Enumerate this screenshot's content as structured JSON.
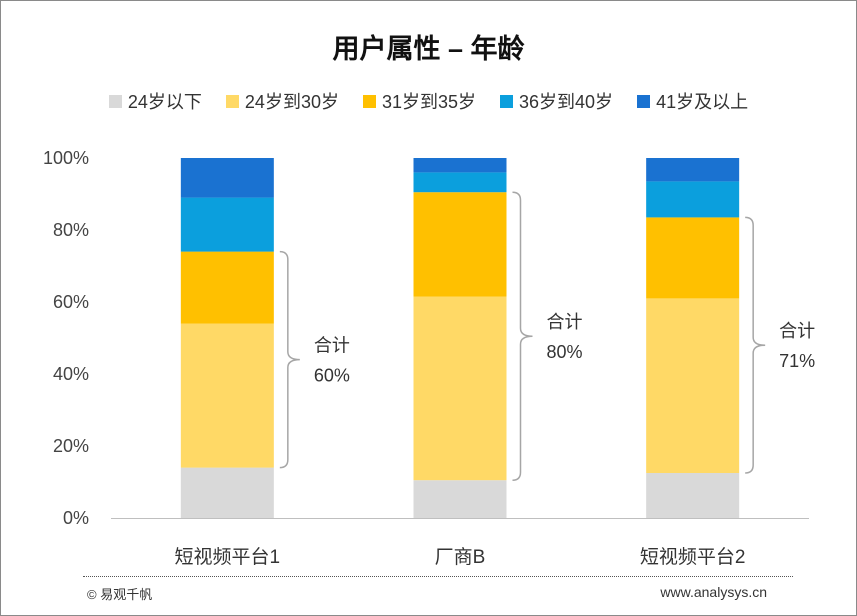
{
  "chart_data": {
    "type": "bar",
    "stacked": true,
    "title": "用户属性 – 年龄",
    "categories": [
      "短视频平台1",
      "厂商B",
      "短视频平台2"
    ],
    "series": [
      {
        "name": "24岁以下",
        "color": "#d9d9d9",
        "values": [
          14,
          10.5,
          12.5
        ]
      },
      {
        "name": "24岁到30岁",
        "color": "#ffd966",
        "values": [
          40,
          51,
          48.5
        ]
      },
      {
        "name": "31岁到35岁",
        "color": "#ffc000",
        "values": [
          20,
          29,
          22.5
        ]
      },
      {
        "name": "36岁到40岁",
        "color": "#0b9fdd",
        "values": [
          15,
          5.5,
          10
        ]
      },
      {
        "name": "41岁及以上",
        "color": "#1a72d1",
        "values": [
          11,
          4,
          6.5
        ]
      }
    ],
    "ylim": [
      0,
      100
    ],
    "yticks": [
      "0%",
      "20%",
      "40%",
      "60%",
      "80%",
      "100%"
    ],
    "legend_position": "top",
    "annotations": [
      {
        "label": "合计",
        "value": "60%",
        "category_index": 0,
        "from": 14,
        "to": 74
      },
      {
        "label": "合计",
        "value": "80%",
        "category_index": 1,
        "from": 10.5,
        "to": 90.5
      },
      {
        "label": "合计",
        "value": "71%",
        "category_index": 2,
        "from": 12.5,
        "to": 83.5
      }
    ]
  },
  "footer": {
    "left": "© 易观千帆",
    "right": "www.analysys.cn"
  }
}
